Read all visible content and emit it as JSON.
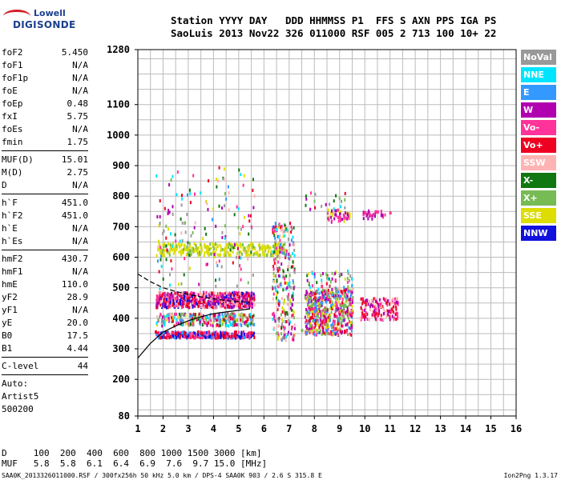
{
  "logo": {
    "line1": "Lowell",
    "line2": "DIGISONDE"
  },
  "header": {
    "line1": "Station YYYY DAY   DDD HHMMSS P1  FFS S AXN PPS IGA PS",
    "line2": "SaoLuis 2013 Nov22 326 011000 RSF 005 2 713 100 10+ 22"
  },
  "params_group1": [
    {
      "k": "foF2",
      "v": "5.450"
    },
    {
      "k": "foF1",
      "v": "N/A"
    },
    {
      "k": "foF1p",
      "v": "N/A"
    },
    {
      "k": "foE",
      "v": "N/A"
    },
    {
      "k": "foEp",
      "v": "0.48"
    },
    {
      "k": "fxI",
      "v": "5.75"
    },
    {
      "k": "foEs",
      "v": "N/A"
    },
    {
      "k": "fmin",
      "v": "1.75"
    }
  ],
  "params_group2": [
    {
      "k": "MUF(D)",
      "v": "15.01"
    },
    {
      "k": "M(D)",
      "v": "2.75"
    },
    {
      "k": "D",
      "v": "N/A"
    }
  ],
  "params_group3": [
    {
      "k": "h`F",
      "v": "451.0"
    },
    {
      "k": "h`F2",
      "v": "451.0"
    },
    {
      "k": "h`E",
      "v": "N/A"
    },
    {
      "k": "h`Es",
      "v": "N/A"
    }
  ],
  "params_group4": [
    {
      "k": "hmF2",
      "v": "430.7"
    },
    {
      "k": "hmF1",
      "v": "N/A"
    },
    {
      "k": "hmE",
      "v": "110.0"
    },
    {
      "k": "yF2",
      "v": "28.9"
    },
    {
      "k": "yF1",
      "v": "N/A"
    },
    {
      "k": "yE",
      "v": "20.0"
    },
    {
      "k": "B0",
      "v": "17.5"
    },
    {
      "k": "B1",
      "v": "4.44"
    }
  ],
  "clevel": {
    "k": "C-level",
    "v": "44"
  },
  "auto": {
    "line1": "Auto:",
    "line2": "Artist5",
    "line3": "500200"
  },
  "legend": [
    {
      "label": "NoVal",
      "color": "#999999"
    },
    {
      "label": "NNE",
      "color": "#00e5ff"
    },
    {
      "label": "E",
      "color": "#3399ff"
    },
    {
      "label": "W",
      "color": "#b000b0"
    },
    {
      "label": "Vo-",
      "color": "#ff3399"
    },
    {
      "label": "Vo+",
      "color": "#ee0022"
    },
    {
      "label": "SSW",
      "color": "#ffb3b3"
    },
    {
      "label": "X-",
      "color": "#117711"
    },
    {
      "label": "X+",
      "color": "#77bb55"
    },
    {
      "label": "SSE",
      "color": "#dddd00"
    },
    {
      "label": "NNW",
      "color": "#1111dd"
    }
  ],
  "chart_data": {
    "type": "scatter",
    "title": "",
    "xlabel": "",
    "ylabel": "",
    "xlim": [
      1,
      16
    ],
    "ylim": [
      80,
      1280
    ],
    "x_ticks": [
      "1",
      "2",
      "3",
      "4",
      "5",
      "6",
      "7",
      "8",
      "9",
      "10",
      "11",
      "12",
      "13",
      "14",
      "15",
      "16"
    ],
    "y_ticks": [
      "80",
      "200",
      "300",
      "400",
      "500",
      "600",
      "700",
      "800",
      "900",
      "1000",
      "1100",
      "1280"
    ],
    "grid": true,
    "traces": [
      {
        "name": "F2 O-trace",
        "color": "#ee0022",
        "points": [
          [
            1.7,
            355
          ],
          [
            2.5,
            350
          ],
          [
            3.5,
            350
          ],
          [
            4.5,
            350
          ],
          [
            5.5,
            352
          ]
        ]
      },
      {
        "name": "F2 main",
        "color": "#ff3399",
        "points": [
          [
            1.8,
            470
          ],
          [
            2.5,
            465
          ],
          [
            3.5,
            462
          ],
          [
            4.5,
            460
          ],
          [
            5.2,
            458
          ]
        ]
      },
      {
        "name": "F2 upper",
        "color": "#dddd00",
        "points": [
          [
            1.8,
            625
          ],
          [
            2.5,
            625
          ],
          [
            3.5,
            632
          ],
          [
            4.5,
            640
          ],
          [
            5.5,
            645
          ],
          [
            6.5,
            640
          ]
        ]
      },
      {
        "name": "X trace",
        "color": "#77bb55",
        "points": [
          [
            6.5,
            350
          ],
          [
            7.5,
            360
          ],
          [
            8.5,
            380
          ],
          [
            9.0,
            400
          ]
        ]
      },
      {
        "name": "Es patch",
        "color": "#ff3399",
        "points": [
          [
            10.0,
            745
          ],
          [
            10.5,
            748
          ],
          [
            11.0,
            745
          ]
        ]
      }
    ],
    "profile_lines": [
      {
        "name": "profile",
        "points": [
          [
            1.0,
            270
          ],
          [
            1.5,
            318
          ],
          [
            2.0,
            355
          ],
          [
            2.5,
            375
          ],
          [
            3.0,
            392
          ],
          [
            3.5,
            405
          ],
          [
            4.0,
            415
          ],
          [
            4.5,
            421
          ],
          [
            5.0,
            426
          ],
          [
            5.45,
            430.7
          ]
        ]
      },
      {
        "name": "model",
        "points": [
          [
            1.0,
            545
          ],
          [
            1.5,
            520
          ],
          [
            2.0,
            500
          ],
          [
            2.5,
            488
          ],
          [
            3.0,
            478
          ],
          [
            3.5,
            470
          ],
          [
            4.0,
            464
          ],
          [
            4.5,
            458
          ],
          [
            5.0,
            455
          ],
          [
            5.45,
            451
          ]
        ]
      }
    ]
  },
  "bottom": {
    "d_row": "D     100  200  400  600  800 1000 1500 3000 [km]",
    "muf_row": "MUF   5.8  5.8  6.1  6.4  6.9  7.6  9.7 15.0 [MHz]"
  },
  "footer": "SAA0K_2013326011000.RSF / 300fx256h 50 kHz 5.0 km / DPS-4 SAA0K 903 / 2.6 S 315.8 E",
  "version": "Ion2Png 1.3.17"
}
